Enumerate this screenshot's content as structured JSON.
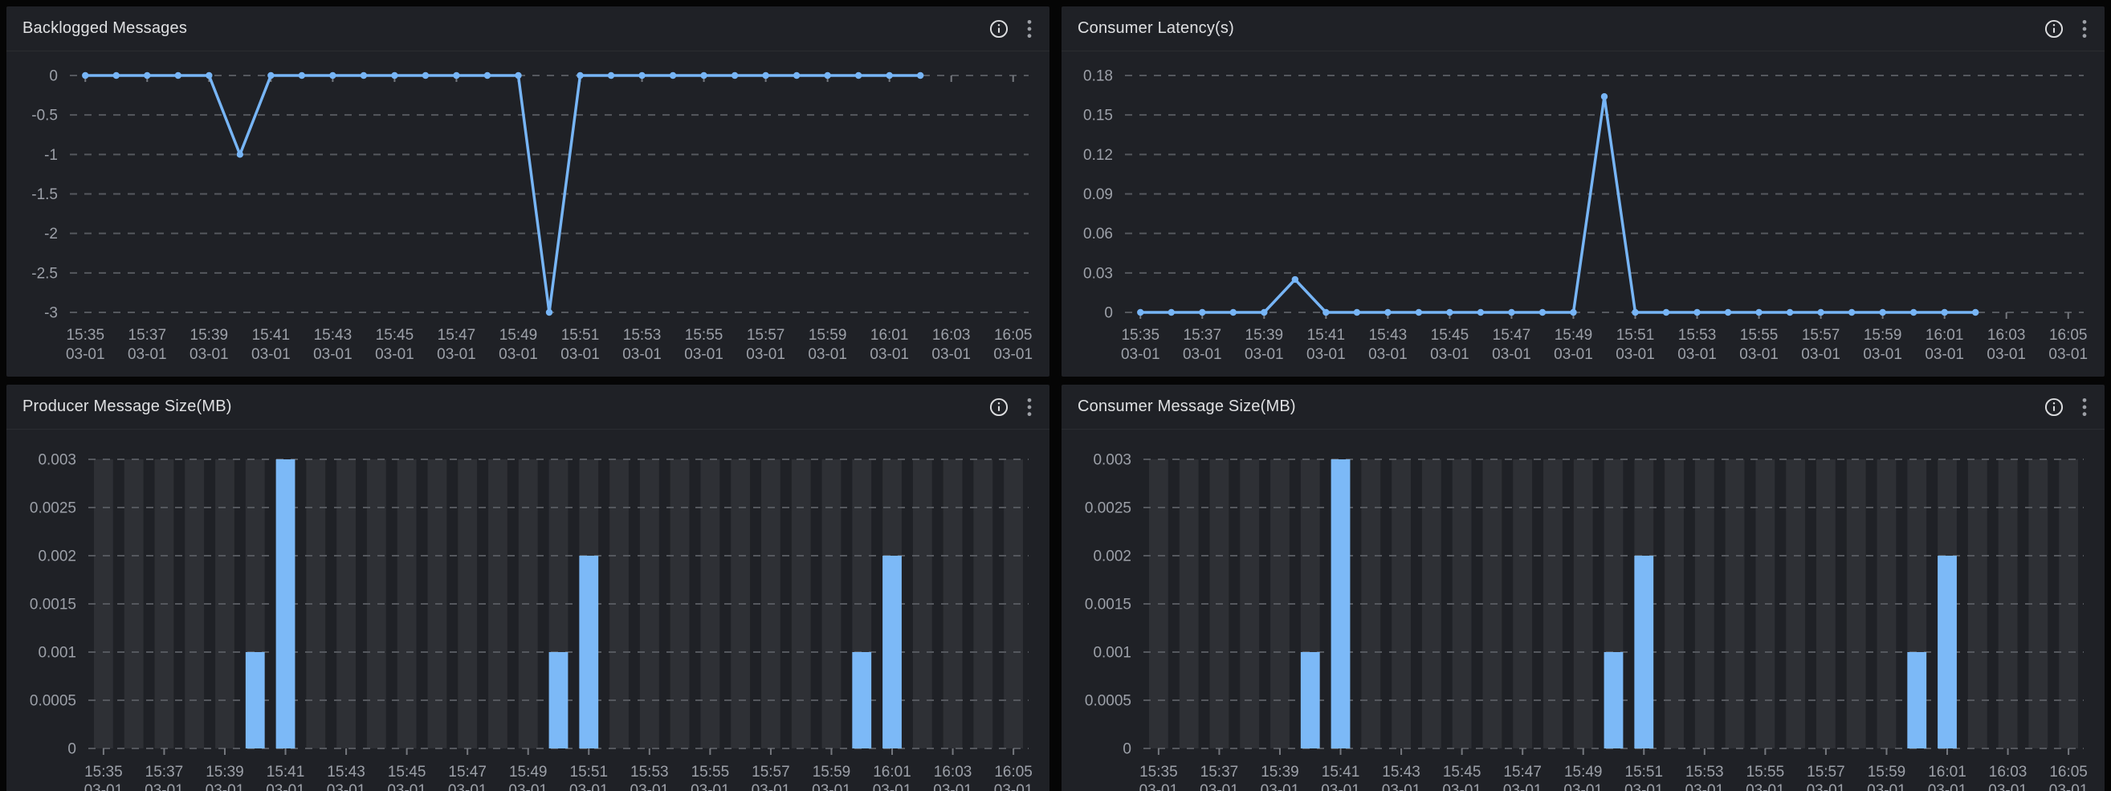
{
  "colors": {
    "page_bg": "#050505",
    "panel_bg": "#1F2126",
    "divider": "#2B2D31",
    "title": "#DFE0E2",
    "accent_line": "#77B5F6",
    "bar": "#7CB9F7",
    "bar_slot_bg": "#2E3035",
    "grid": "#55585E",
    "axis_label": "#9CA0A8",
    "tick": "#75787E",
    "info_icon": "#DDDEE0",
    "kebab_icon": "#9DA0A6"
  },
  "x_axis": {
    "minutes": [
      "15:35",
      "15:36",
      "15:37",
      "15:38",
      "15:39",
      "15:40",
      "15:41",
      "15:42",
      "15:43",
      "15:44",
      "15:45",
      "15:46",
      "15:47",
      "15:48",
      "15:49",
      "15:50",
      "15:51",
      "15:52",
      "15:53",
      "15:54",
      "15:55",
      "15:56",
      "15:57",
      "15:58",
      "15:59",
      "16:00",
      "16:01",
      "16:02",
      "16:03",
      "16:04",
      "16:05"
    ],
    "date": "03-01",
    "label_interval": 2
  },
  "chart_data": [
    {
      "type": "line",
      "title": "Backlogged Messages",
      "y_ticks": [
        "0",
        "-0.5",
        "-1",
        "-1.5",
        "-2",
        "-2.5",
        "-3"
      ],
      "y_max": 0,
      "y_min": -3,
      "grid": "dashed",
      "legend": "none",
      "values": [
        0,
        0,
        0,
        0,
        0,
        -1,
        0,
        0,
        0,
        0,
        0,
        0,
        0,
        0,
        0,
        -3,
        0,
        0,
        0,
        0,
        0,
        0,
        0,
        0,
        0,
        0,
        0,
        0
      ]
    },
    {
      "type": "line",
      "title": "Consumer Latency(s)",
      "y_ticks": [
        "0.18",
        "0.15",
        "0.12",
        "0.09",
        "0.06",
        "0.03",
        "0"
      ],
      "y_max": 0.18,
      "y_min": 0,
      "grid": "dashed",
      "legend": "none",
      "values": [
        0,
        0,
        0,
        0,
        0,
        0.025,
        0,
        0,
        0,
        0,
        0,
        0,
        0,
        0,
        0,
        0.164,
        0,
        0,
        0,
        0,
        0,
        0,
        0,
        0,
        0,
        0,
        0,
        0
      ]
    },
    {
      "type": "bar",
      "title": "Producer Message Size(MB)",
      "y_ticks": [
        "0.003",
        "0.0025",
        "0.002",
        "0.0015",
        "0.001",
        "0.0005",
        "0"
      ],
      "y_max": 0.003,
      "y_min": 0,
      "grid": "dashed",
      "legend": "none",
      "values": [
        0,
        0,
        0,
        0,
        0,
        0.001,
        0.003,
        0,
        0,
        0,
        0,
        0,
        0,
        0,
        0,
        0.001,
        0.002,
        0,
        0,
        0,
        0,
        0,
        0,
        0,
        0,
        0.001,
        0.002,
        0,
        0,
        0,
        0
      ]
    },
    {
      "type": "bar",
      "title": "Consumer Message Size(MB)",
      "y_ticks": [
        "0.003",
        "0.0025",
        "0.002",
        "0.0015",
        "0.001",
        "0.0005",
        "0"
      ],
      "y_max": 0.003,
      "y_min": 0,
      "grid": "dashed",
      "legend": "none",
      "values": [
        0,
        0,
        0,
        0,
        0,
        0.001,
        0.003,
        0,
        0,
        0,
        0,
        0,
        0,
        0,
        0,
        0.001,
        0.002,
        0,
        0,
        0,
        0,
        0,
        0,
        0,
        0,
        0.001,
        0.002,
        0,
        0,
        0,
        0
      ]
    }
  ]
}
